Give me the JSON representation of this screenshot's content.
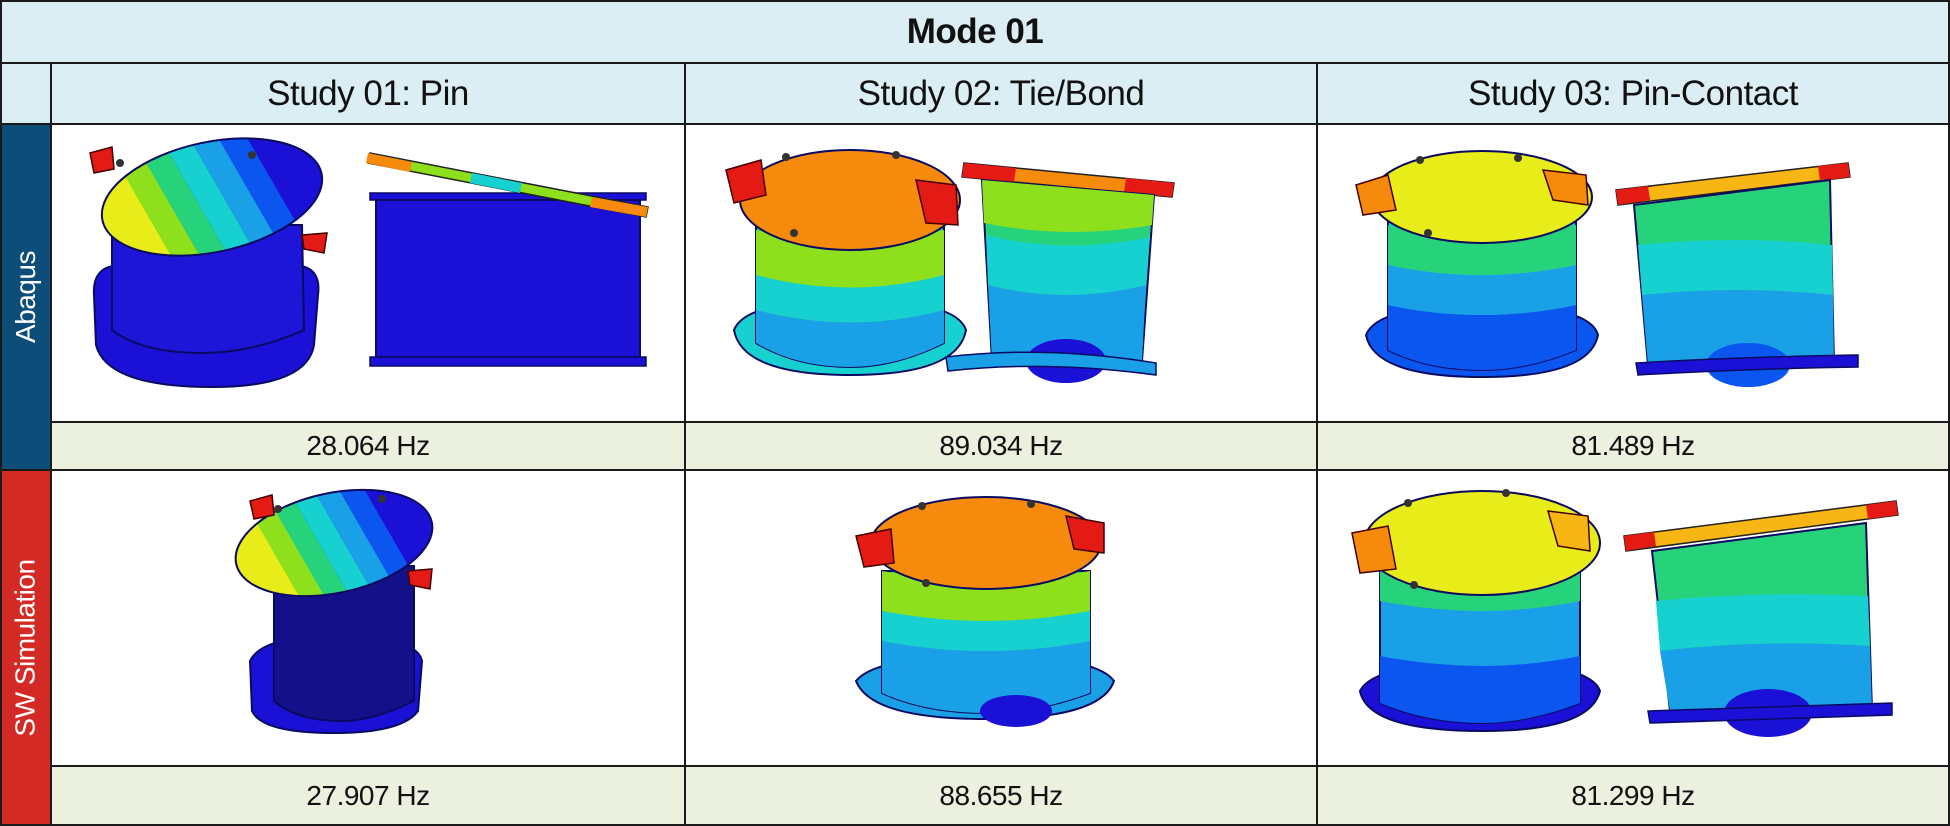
{
  "table": {
    "title": "Mode 01",
    "columns": [
      {
        "label": "Study 01: Pin"
      },
      {
        "label": "Study 02: Tie/Bond"
      },
      {
        "label": "Study 03: Pin-Contact"
      }
    ],
    "rows": [
      {
        "label": "Abaqus",
        "color": "#0d4d7a",
        "frequencies": [
          "28.064 Hz",
          "89.034 Hz",
          "81.489 Hz"
        ]
      },
      {
        "label": "SW Simulation",
        "color": "#d42a26",
        "frequencies": [
          "27.907 Hz",
          "88.655 Hz",
          "81.299 Hz"
        ]
      }
    ]
  },
  "contour_palette": [
    "#1a10d6",
    "#0b56ef",
    "#1aa0e6",
    "#17d1d0",
    "#27d37a",
    "#8de01b",
    "#e8ec18",
    "#f8b614",
    "#f58a0c",
    "#e41a14"
  ]
}
